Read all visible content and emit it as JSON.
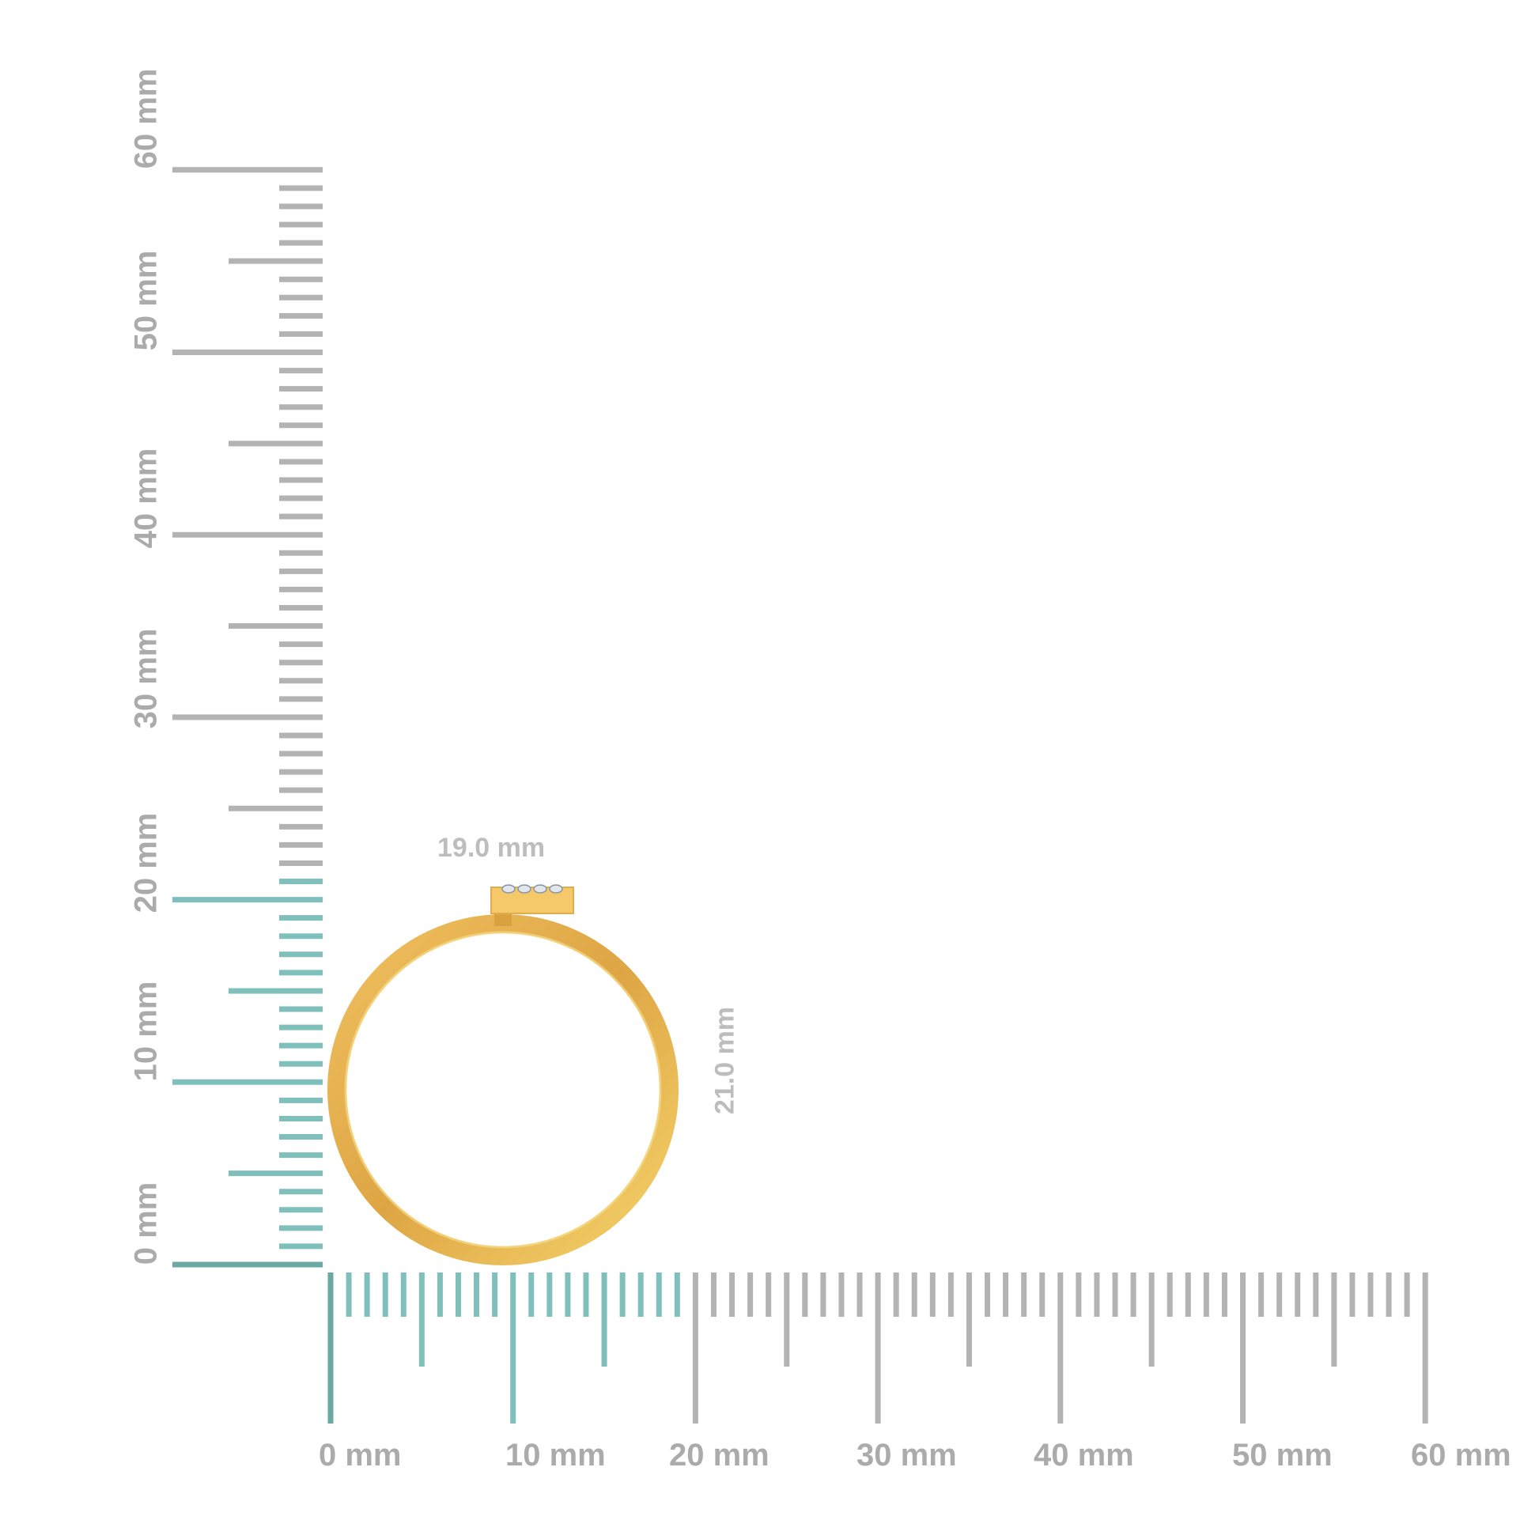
{
  "rulers": {
    "unit": "mm",
    "horizontal_labels": [
      "0 mm",
      "10 mm",
      "20 mm",
      "30 mm",
      "40 mm",
      "50 mm",
      "60 mm"
    ],
    "vertical_labels": [
      "0 mm",
      "10 mm",
      "20 mm",
      "30 mm",
      "40 mm",
      "50 mm",
      "60 mm"
    ],
    "range_mm": [
      0,
      60
    ],
    "highlight_width_mm": 19,
    "highlight_height_mm": 21,
    "colors": {
      "tick": "#b3b3b3",
      "highlight": "#7fbfbc",
      "zero": "#6aa8a2"
    }
  },
  "product": {
    "type": "ring",
    "width_label": "19.0 mm",
    "height_label": "21.0 mm",
    "metal_color": "#e8b04a",
    "stone_count": 4
  }
}
